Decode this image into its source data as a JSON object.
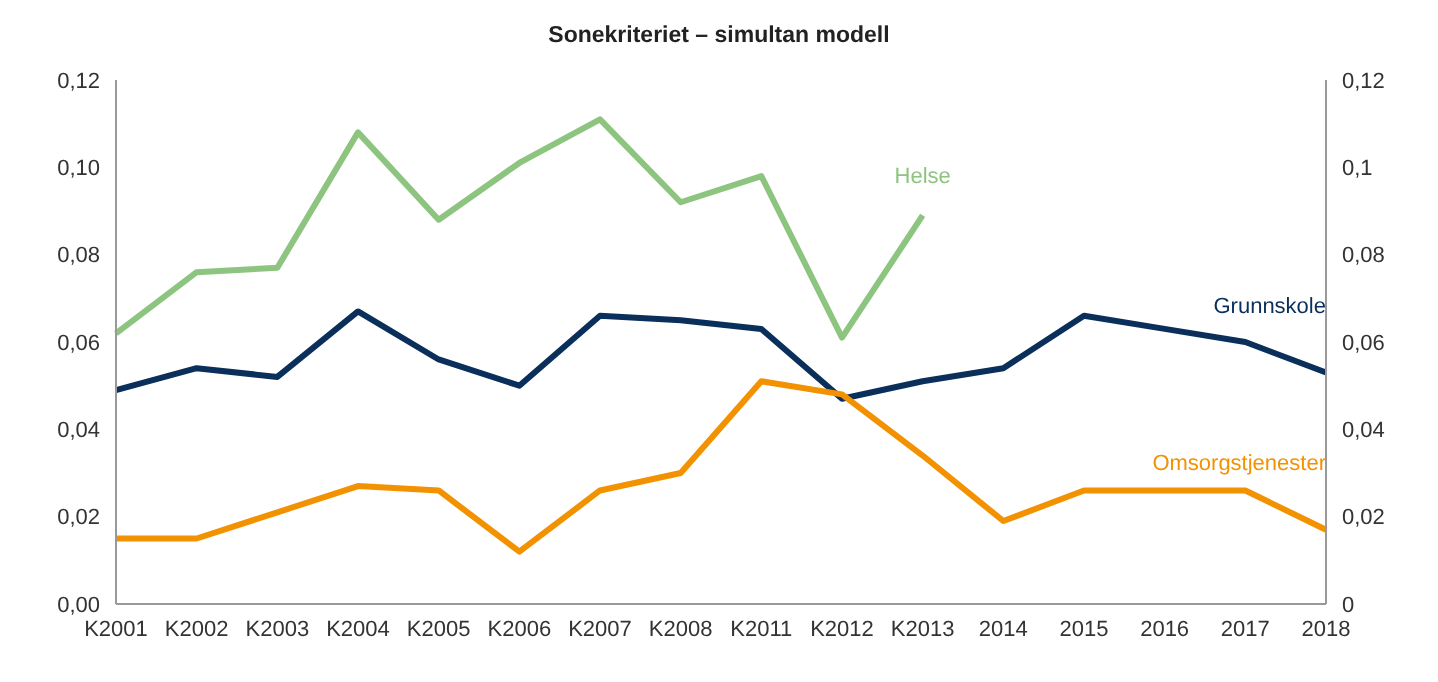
{
  "chart_data": {
    "type": "line",
    "title": "Sonekriteriet – simultan modell",
    "categories": [
      "K2001",
      "K2002",
      "K2003",
      "K2004",
      "K2005",
      "K2006",
      "K2007",
      "K2008",
      "K2011",
      "K2012",
      "K2013",
      "2014",
      "2015",
      "2016",
      "2017",
      "2018"
    ],
    "series": [
      {
        "name": "Helse",
        "color": "#8dc47f",
        "values": [
          0.062,
          0.076,
          0.077,
          0.108,
          0.088,
          0.101,
          0.111,
          0.092,
          0.098,
          0.061,
          0.089,
          null,
          null,
          null,
          null,
          null
        ]
      },
      {
        "name": "Grunnskole",
        "color": "#0a2f5a",
        "values": [
          0.049,
          0.054,
          0.052,
          0.067,
          0.056,
          0.05,
          0.066,
          0.065,
          0.063,
          0.047,
          0.051,
          0.054,
          0.066,
          0.063,
          0.06,
          0.053
        ]
      },
      {
        "name": "Omsorgstjenester",
        "color": "#f39200",
        "values": [
          0.015,
          0.015,
          0.021,
          0.027,
          0.026,
          0.012,
          0.026,
          0.03,
          0.051,
          0.048,
          0.034,
          0.019,
          0.026,
          0.026,
          0.026,
          0.017
        ]
      }
    ],
    "ylim": [
      0,
      0.12
    ],
    "yticks": [
      {
        "value": 0,
        "label": "0,00"
      },
      {
        "value": 0.02,
        "label": "0,02"
      },
      {
        "value": 0.04,
        "label": "0,04"
      },
      {
        "value": 0.06,
        "label": "0,06"
      },
      {
        "value": 0.08,
        "label": "0,08"
      },
      {
        "value": 0.1,
        "label": "0,10"
      },
      {
        "value": 0.12,
        "label": "0,12"
      }
    ],
    "y2lim": [
      0,
      0.12
    ],
    "y2ticks": [
      {
        "value": 0,
        "label": "0"
      },
      {
        "value": 0.02,
        "label": "0,02"
      },
      {
        "value": 0.04,
        "label": "0,04"
      },
      {
        "value": 0.06,
        "label": "0,06"
      },
      {
        "value": 0.08,
        "label": "0,08"
      },
      {
        "value": 0.1,
        "label": "0,1"
      },
      {
        "value": 0.12,
        "label": "0,12"
      }
    ],
    "grid": false,
    "legend": false,
    "marker": "none",
    "line_style": "solid"
  }
}
